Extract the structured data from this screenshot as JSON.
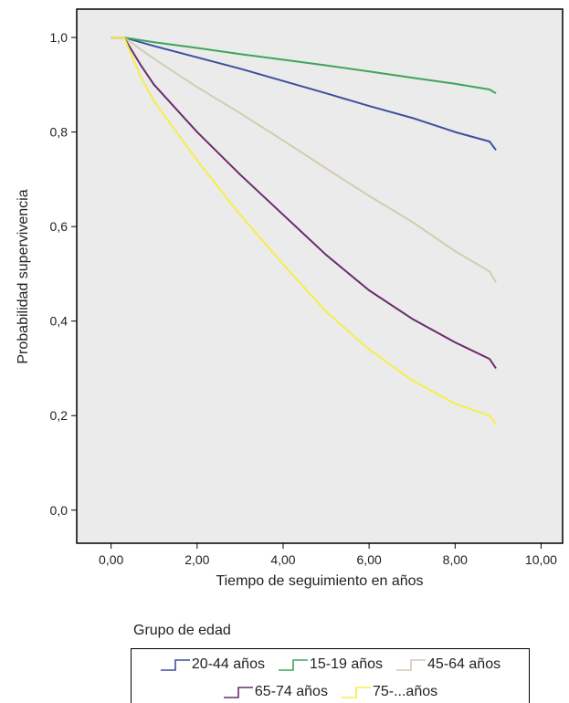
{
  "chart_data": {
    "type": "line",
    "xlabel": "Tiempo de seguimiento en años",
    "ylabel": "Probabilidad supervivencia",
    "xlim": [
      -0.8,
      10.5
    ],
    "ylim": [
      -0.07,
      1.06
    ],
    "x_ticks": [
      0,
      2,
      4,
      6,
      8,
      10
    ],
    "x_tick_labels": [
      "0,00",
      "2,00",
      "4,00",
      "6,00",
      "8,00",
      "10,00"
    ],
    "y_ticks": [
      0,
      0.2,
      0.4,
      0.6,
      0.8,
      1.0
    ],
    "y_tick_labels": [
      "0,0",
      "0,2",
      "0,4",
      "0,6",
      "0,8",
      "1,0"
    ],
    "grid": false,
    "background": "#ebebeb",
    "legend_title": "Grupo de edad",
    "legend_placement": "bottom",
    "series": [
      {
        "name": "20-44 años",
        "color": "#3d4f9e",
        "points": [
          [
            0,
            1
          ],
          [
            0.3,
            1
          ],
          [
            1,
            0.982
          ],
          [
            2,
            0.958
          ],
          [
            3,
            0.934
          ],
          [
            4,
            0.908
          ],
          [
            5,
            0.882
          ],
          [
            6,
            0.855
          ],
          [
            7,
            0.83
          ],
          [
            8,
            0.8
          ],
          [
            8.8,
            0.78
          ],
          [
            8.95,
            0.762
          ]
        ]
      },
      {
        "name": "15-19 años",
        "color": "#3da55a",
        "points": [
          [
            0,
            1
          ],
          [
            0.3,
            1
          ],
          [
            1,
            0.99
          ],
          [
            2,
            0.978
          ],
          [
            3,
            0.965
          ],
          [
            4,
            0.953
          ],
          [
            5,
            0.941
          ],
          [
            6,
            0.928
          ],
          [
            7,
            0.915
          ],
          [
            8,
            0.902
          ],
          [
            8.8,
            0.89
          ],
          [
            8.95,
            0.882
          ]
        ]
      },
      {
        "name": "45-64 años",
        "color": "#d2ccb0",
        "points": [
          [
            0,
            1
          ],
          [
            0.3,
            1
          ],
          [
            1,
            0.955
          ],
          [
            2,
            0.895
          ],
          [
            3,
            0.84
          ],
          [
            4,
            0.782
          ],
          [
            5,
            0.723
          ],
          [
            6,
            0.665
          ],
          [
            7,
            0.61
          ],
          [
            8,
            0.548
          ],
          [
            8.8,
            0.505
          ],
          [
            8.95,
            0.482
          ]
        ]
      },
      {
        "name": "65-74 años",
        "color": "#6b2a6e",
        "points": [
          [
            0,
            1
          ],
          [
            0.3,
            1
          ],
          [
            0.7,
            0.94
          ],
          [
            1,
            0.9
          ],
          [
            2,
            0.8
          ],
          [
            3,
            0.71
          ],
          [
            4,
            0.625
          ],
          [
            5,
            0.54
          ],
          [
            6,
            0.465
          ],
          [
            7,
            0.405
          ],
          [
            8,
            0.355
          ],
          [
            8.8,
            0.32
          ],
          [
            8.95,
            0.3
          ]
        ]
      },
      {
        "name": "75-...años",
        "color": "#f5ee4a",
        "points": [
          [
            0,
            1
          ],
          [
            0.3,
            1
          ],
          [
            0.7,
            0.915
          ],
          [
            1,
            0.865
          ],
          [
            2,
            0.74
          ],
          [
            3,
            0.625
          ],
          [
            4,
            0.52
          ],
          [
            5,
            0.42
          ],
          [
            6,
            0.34
          ],
          [
            7,
            0.275
          ],
          [
            8,
            0.225
          ],
          [
            8.8,
            0.2
          ],
          [
            8.95,
            0.182
          ]
        ]
      }
    ]
  }
}
